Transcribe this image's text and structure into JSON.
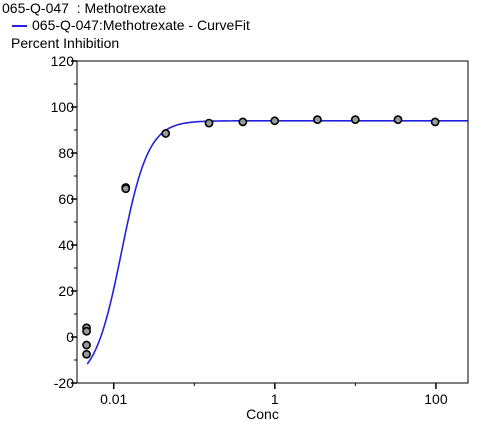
{
  "chart_data": {
    "type": "scatter",
    "title": "065-Q-047  : Methotrexate",
    "xlabel": "Conc",
    "ylabel": "Percent Inhibition",
    "x_scale": "log",
    "xlim": [
      0.0035,
      250
    ],
    "ylim": [
      -20,
      120
    ],
    "x_ticks": [
      0.01,
      1,
      100
    ],
    "x_tick_labels": [
      "0.01",
      "1",
      "100"
    ],
    "y_ticks": [
      -20,
      0,
      20,
      40,
      60,
      80,
      100,
      120
    ],
    "y_tick_labels": [
      "-20",
      "0",
      "20",
      "40",
      "60",
      "80",
      "100",
      "120"
    ],
    "grid": false,
    "legend_position": "top-left",
    "series": [
      {
        "name": "065-Q-047  : Methotrexate",
        "kind": "points",
        "color": "#000000",
        "fill": "#999999",
        "points": [
          [
            0.0046,
            4
          ],
          [
            0.0046,
            2.5
          ],
          [
            0.0046,
            -3.5
          ],
          [
            0.0046,
            -7.5
          ],
          [
            0.0141,
            65
          ],
          [
            0.0141,
            64.5
          ],
          [
            0.0442,
            88.5
          ],
          [
            0.1524,
            93
          ],
          [
            0.4006,
            93.5
          ],
          [
            0.9972,
            94
          ],
          [
            3.378,
            94.5
          ],
          [
            9.973,
            94.5
          ],
          [
            33.78,
            94.5
          ],
          [
            97.72,
            93.5
          ]
        ]
      },
      {
        "name": "065-Q-047:Methotrexate - CurveFit",
        "kind": "fit",
        "color": "#2222dd",
        "model": "4PL",
        "bottom": -20,
        "top": 94,
        "ec50": 0.0125,
        "hill": 2.6
      }
    ]
  }
}
